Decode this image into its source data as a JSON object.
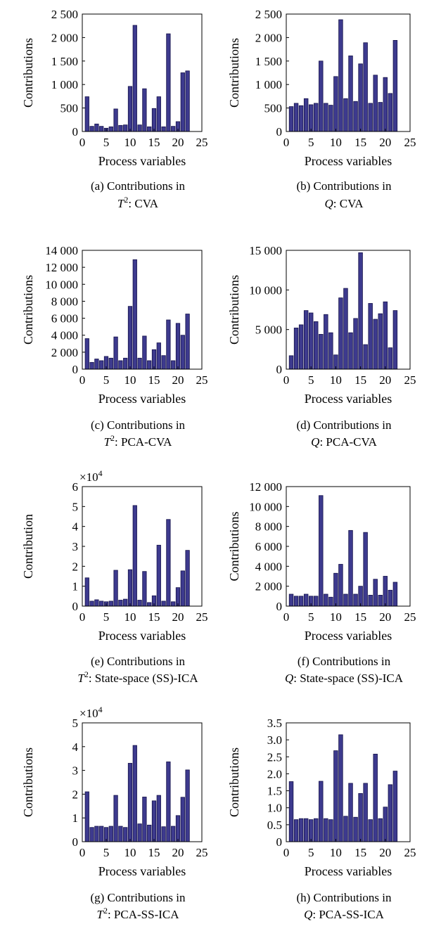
{
  "panel_labels": {
    "a_line1": "(a) Contributions in",
    "a_line2": ": CVA",
    "b_line1": "(b) Contributions in",
    "b_line2": ": CVA",
    "c_line1": "(c) Contributions in",
    "c_line2": ": PCA-CVA",
    "d_line1": "(d) Contributions in",
    "d_line2": ": PCA-CVA",
    "e_line1": "(e) Contributions in",
    "e_line2": ": State-space (SS)-ICA",
    "f_line1": "(f) Contributions in",
    "f_line2": ": State-space (SS)-ICA",
    "g_line1": "(g) Contributions in",
    "g_line2": ": PCA-SS-ICA",
    "h_line1": "(h) Contributions in",
    "h_line2": ": PCA-SS-ICA"
  },
  "chart_data": [
    {
      "type": "bar",
      "panel": "a",
      "stat": "T",
      "stat_sup": "2",
      "xlabel": "Process variables",
      "ylabel": "Contributions",
      "xlim": [
        0,
        25
      ],
      "ylim": [
        0,
        2500
      ],
      "xticks": [
        0,
        5,
        10,
        15,
        20,
        25
      ],
      "yticks": [
        0,
        500,
        1000,
        1500,
        2000,
        2500
      ],
      "ytick_labels": [
        "0",
        "500",
        "1 000",
        "1 500",
        "2 000",
        "2 500"
      ],
      "exponent_label": "",
      "bar_color": "#3d3a8e",
      "x": [
        1,
        2,
        3,
        4,
        5,
        6,
        7,
        8,
        9,
        10,
        11,
        12,
        13,
        14,
        15,
        16,
        17,
        18,
        19,
        20,
        21,
        22
      ],
      "values": [
        740,
        110,
        160,
        110,
        70,
        100,
        480,
        130,
        140,
        960,
        2260,
        140,
        910,
        100,
        490,
        740,
        100,
        2080,
        110,
        210,
        1250,
        1290
      ]
    },
    {
      "type": "bar",
      "panel": "b",
      "stat": "Q",
      "stat_sup": "",
      "xlabel": "Process variables",
      "ylabel": "Contributions",
      "xlim": [
        0,
        25
      ],
      "ylim": [
        0,
        2500
      ],
      "xticks": [
        0,
        5,
        10,
        15,
        20,
        25
      ],
      "yticks": [
        0,
        500,
        1000,
        1500,
        2000,
        2500
      ],
      "ytick_labels": [
        "0",
        "500",
        "1 000",
        "1 500",
        "2 000",
        "2 500"
      ],
      "exponent_label": "",
      "bar_color": "#3d3a8e",
      "x": [
        1,
        2,
        3,
        4,
        5,
        6,
        7,
        8,
        9,
        10,
        11,
        12,
        13,
        14,
        15,
        16,
        17,
        18,
        19,
        20,
        21,
        22
      ],
      "values": [
        530,
        600,
        550,
        700,
        570,
        600,
        1500,
        600,
        560,
        1170,
        2380,
        700,
        1610,
        640,
        1440,
        1890,
        600,
        1200,
        620,
        1150,
        810,
        1940
      ]
    },
    {
      "type": "bar",
      "panel": "c",
      "stat": "T",
      "stat_sup": "2",
      "xlabel": "Process variables",
      "ylabel": "Contributions",
      "xlim": [
        0,
        25
      ],
      "ylim": [
        0,
        14000
      ],
      "xticks": [
        0,
        5,
        10,
        15,
        20,
        25
      ],
      "yticks": [
        0,
        2000,
        4000,
        6000,
        8000,
        10000,
        12000,
        14000
      ],
      "ytick_labels": [
        "0",
        "2 000",
        "4 000",
        "6 000",
        "8 000",
        "10 000",
        "12 000",
        "14 000"
      ],
      "exponent_label": "",
      "bar_color": "#3d3a8e",
      "x": [
        1,
        2,
        3,
        4,
        5,
        6,
        7,
        8,
        9,
        10,
        11,
        12,
        13,
        14,
        15,
        16,
        17,
        18,
        19,
        20,
        21,
        22
      ],
      "values": [
        3600,
        800,
        1200,
        1000,
        1500,
        1300,
        3800,
        1000,
        1300,
        7400,
        12900,
        1300,
        3900,
        1000,
        2300,
        3100,
        1600,
        5800,
        1000,
        5400,
        4000,
        6500
      ]
    },
    {
      "type": "bar",
      "panel": "d",
      "stat": "Q",
      "stat_sup": "",
      "xlabel": "Process variables",
      "ylabel": "Contributions",
      "xlim": [
        0,
        25
      ],
      "ylim": [
        0,
        15000
      ],
      "xticks": [
        0,
        5,
        10,
        15,
        20,
        25
      ],
      "yticks": [
        0,
        5000,
        10000,
        15000
      ],
      "ytick_labels": [
        "0",
        "5 000",
        "10 000",
        "15 000"
      ],
      "exponent_label": "",
      "bar_color": "#3d3a8e",
      "x": [
        1,
        2,
        3,
        4,
        5,
        6,
        7,
        8,
        9,
        10,
        11,
        12,
        13,
        14,
        15,
        16,
        17,
        18,
        19,
        20,
        21,
        22
      ],
      "values": [
        1700,
        5200,
        5600,
        7400,
        7100,
        6000,
        4400,
        6900,
        4600,
        1800,
        9000,
        10200,
        4600,
        6400,
        14700,
        3100,
        8300,
        6300,
        7000,
        8500,
        2700,
        7400
      ]
    },
    {
      "type": "bar",
      "panel": "e",
      "stat": "T",
      "stat_sup": "2",
      "xlabel": "Process variables",
      "ylabel": "Contribution",
      "xlim": [
        0,
        25
      ],
      "ylim": [
        0,
        6
      ],
      "xticks": [
        0,
        5,
        10,
        15,
        20,
        25
      ],
      "yticks": [
        0,
        1,
        2,
        3,
        4,
        5,
        6
      ],
      "ytick_labels": [
        "0",
        "1",
        "2",
        "3",
        "4",
        "5",
        "6"
      ],
      "exponent_label": "×10",
      "exponent_sup": "4",
      "bar_color": "#3d3a8e",
      "x": [
        1,
        2,
        3,
        4,
        5,
        6,
        7,
        8,
        9,
        10,
        11,
        12,
        13,
        14,
        15,
        16,
        17,
        18,
        19,
        20,
        21,
        22
      ],
      "values": [
        1.42,
        0.25,
        0.32,
        0.25,
        0.22,
        0.25,
        1.8,
        0.3,
        0.35,
        1.83,
        5.05,
        0.3,
        1.74,
        0.18,
        0.52,
        3.06,
        0.25,
        4.35,
        0.22,
        0.93,
        1.77,
        2.8
      ]
    },
    {
      "type": "bar",
      "panel": "f",
      "stat": "Q",
      "stat_sup": "",
      "xlabel": "Process variables",
      "ylabel": "Contributions",
      "xlim": [
        0,
        25
      ],
      "ylim": [
        0,
        12000
      ],
      "xticks": [
        0,
        5,
        10,
        15,
        20,
        25
      ],
      "yticks": [
        0,
        2000,
        4000,
        6000,
        8000,
        10000,
        12000
      ],
      "ytick_labels": [
        "0",
        "2 000",
        "4 000",
        "6 000",
        "8 000",
        "10 000",
        "12 000"
      ],
      "exponent_label": "",
      "bar_color": "#3d3a8e",
      "x": [
        1,
        2,
        3,
        4,
        5,
        6,
        7,
        8,
        9,
        10,
        11,
        12,
        13,
        14,
        15,
        16,
        17,
        18,
        19,
        20,
        21,
        22
      ],
      "values": [
        1200,
        1000,
        1000,
        1200,
        1000,
        1000,
        11100,
        1200,
        900,
        3300,
        4200,
        1200,
        7600,
        1200,
        2000,
        7400,
        1100,
        2700,
        1100,
        3000,
        1600,
        2400
      ]
    },
    {
      "type": "bar",
      "panel": "g",
      "stat": "T",
      "stat_sup": "2",
      "xlabel": "Process variables",
      "ylabel": "Contributions",
      "xlim": [
        0,
        25
      ],
      "ylim": [
        0,
        5
      ],
      "xticks": [
        0,
        5,
        10,
        15,
        20,
        25
      ],
      "yticks": [
        0,
        1,
        2,
        3,
        4,
        5
      ],
      "ytick_labels": [
        "0",
        "1",
        "2",
        "3",
        "4",
        "5"
      ],
      "exponent_label": "×10",
      "exponent_sup": "4",
      "bar_color": "#3d3a8e",
      "x": [
        1,
        2,
        3,
        4,
        5,
        6,
        7,
        8,
        9,
        10,
        11,
        12,
        13,
        14,
        15,
        16,
        17,
        18,
        19,
        20,
        21,
        22
      ],
      "values": [
        2.1,
        0.6,
        0.65,
        0.65,
        0.6,
        0.65,
        1.95,
        0.65,
        0.6,
        3.3,
        4.05,
        0.75,
        1.88,
        0.7,
        1.72,
        1.95,
        0.63,
        3.36,
        0.65,
        1.1,
        1.87,
        3.02
      ]
    },
    {
      "type": "bar",
      "panel": "h",
      "stat": "Q",
      "stat_sup": "",
      "xlabel": "Process variables",
      "ylabel": "Contributions",
      "xlim": [
        0,
        25
      ],
      "ylim": [
        0,
        3.5
      ],
      "xticks": [
        0,
        5,
        10,
        15,
        20,
        25
      ],
      "yticks": [
        0,
        0.5,
        1.0,
        1.5,
        2.0,
        2.5,
        3.0,
        3.5
      ],
      "ytick_labels": [
        "0",
        "0.5",
        "1.0",
        "1.5",
        "2.0",
        "2.5",
        "3.0",
        "3.5"
      ],
      "exponent_label": "",
      "bar_color": "#3d3a8e",
      "x": [
        1,
        2,
        3,
        4,
        5,
        6,
        7,
        8,
        9,
        10,
        11,
        12,
        13,
        14,
        15,
        16,
        17,
        18,
        19,
        20,
        21,
        22
      ],
      "values": [
        1.77,
        0.65,
        0.68,
        0.68,
        0.65,
        0.68,
        1.78,
        0.68,
        0.65,
        2.68,
        3.15,
        0.75,
        1.72,
        0.72,
        1.42,
        1.72,
        0.65,
        2.58,
        0.68,
        1.02,
        1.68,
        2.08
      ]
    }
  ]
}
